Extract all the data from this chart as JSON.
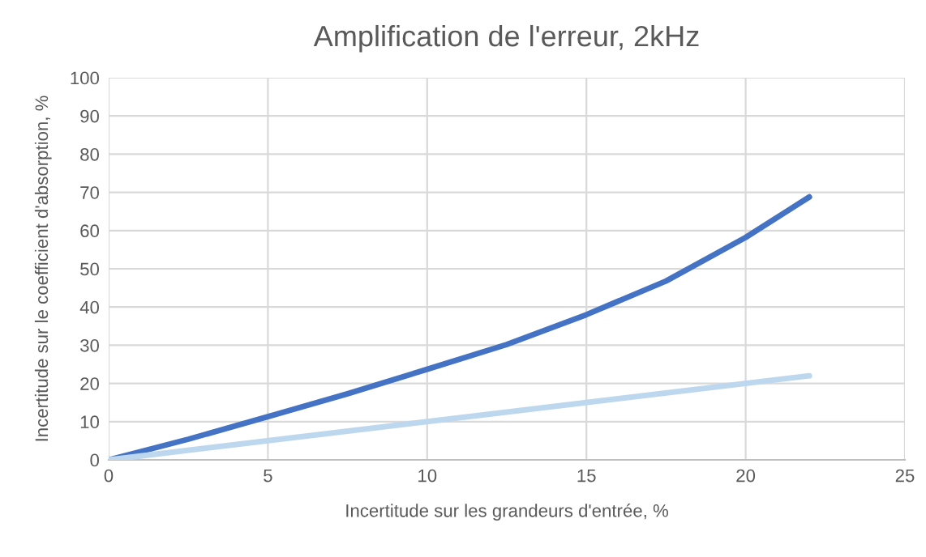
{
  "chart_data": {
    "type": "line",
    "title": "Amplification de l'erreur, 2kHz",
    "xlabel": "Incertitude sur les grandeurs d'entrée, %",
    "ylabel": "Incertitude sur le coefficient d'absorption, %",
    "series": [
      {
        "color": "#4472c4",
        "x": [
          0,
          2.5,
          5,
          7.5,
          10,
          12.5,
          15,
          17.5,
          20,
          22
        ],
        "values": [
          0,
          5.4,
          11.3,
          17.3,
          23.7,
          30.2,
          38,
          46.8,
          58.2,
          68.8
        ]
      },
      {
        "color": "#bdd7ee",
        "x": [
          0,
          22
        ],
        "values": [
          0,
          22
        ]
      }
    ],
    "xlim": [
      0,
      25
    ],
    "xticks": [
      0,
      5,
      10,
      15,
      20,
      25
    ],
    "ylim": [
      0,
      100
    ],
    "yticks": [
      0,
      10,
      20,
      30,
      40,
      50,
      60,
      70,
      80,
      90,
      100
    ],
    "grid": true,
    "marker": "none",
    "line_style": "solid"
  }
}
